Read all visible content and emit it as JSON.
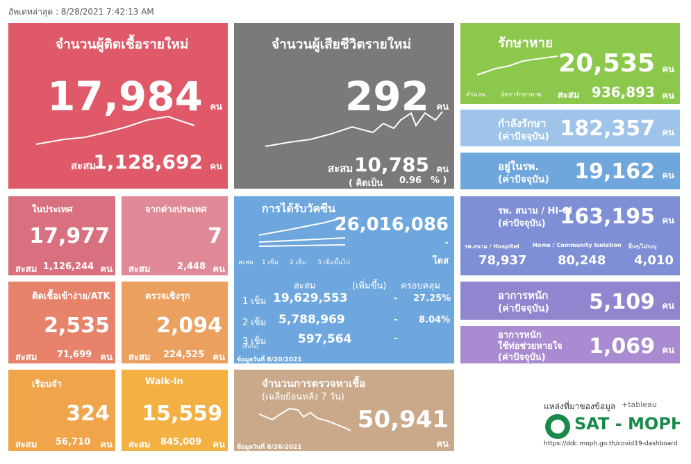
{
  "header": {
    "updated": "อัพเดทล่าสุด : 8/28/2021 7:42:13 AM"
  },
  "new_cases": {
    "title": "จำนวนผู้ติดเชื้อรายใหม่",
    "value": "17,984",
    "unit": "คน",
    "cum_label": "สะสม",
    "cum": "1,128,692",
    "cum_unit": "คน"
  },
  "deaths": {
    "title": "จำนวนผู้เสียชีวิตรายใหม่",
    "value": "292",
    "unit": "คน",
    "cum_label": "สะสม",
    "cum": "10,785",
    "cum_unit": "คน",
    "rate_open": "( คิดเป็น",
    "rate": "0.96",
    "rate_close": "% )"
  },
  "recovered": {
    "title": "รักษาหาย",
    "value": "20,535",
    "unit": "คน",
    "legend": [
      "จำนวน",
      "อัตรารักษาหาย"
    ],
    "cum_label": "สะสม",
    "cum": "936,893",
    "cum_unit": "คน"
  },
  "treating": {
    "title": "กำลังรักษา",
    "sub": "(ค่าปัจจุบัน)",
    "value": "182,357",
    "unit": "คน"
  },
  "hospital": {
    "title": "อยู่ในรพ.",
    "sub": "(ค่าปัจจุบัน)",
    "value": "19,162",
    "unit": "คน"
  },
  "field": {
    "title": "รพ. สนาม / HI-CI",
    "sub": "(ค่าปัจจุบัน)",
    "value": "163,195",
    "unit": "คน",
    "parts": [
      {
        "label": "รพ.สนาม / Hospitel",
        "value": "78,937"
      },
      {
        "label": "Home / Community Isolation",
        "value": "80,248"
      },
      {
        "label": "อื่นๆ/ไม่ระบุ",
        "value": "4,010"
      }
    ]
  },
  "severe": {
    "title": "อาการหนัก",
    "sub": "(ค่าปัจจุบัน)",
    "value": "5,109",
    "unit": "คน"
  },
  "ventilator": {
    "title": "อาการหนัก",
    "title2": "ใช้ท่อช่วยหายใจ",
    "sub": "(ค่าปัจจุบัน)",
    "value": "1,069",
    "unit": "คน"
  },
  "source": {
    "label": "แหล่งที่มาของข้อมูล",
    "tableau": "+tableau",
    "org": "SAT - MOPH",
    "url": "https://ddc.moph.go.th/covid19-dashboard"
  },
  "small": [
    {
      "title": "ในประเทศ",
      "value": "17,977",
      "cum_label": "สะสม",
      "cum": "1,126,244",
      "cum_unit": "คน"
    },
    {
      "title": "จากต่างประเทศ",
      "value": "7",
      "cum_label": "สะสม",
      "cum": "2,448",
      "cum_unit": "คน"
    },
    {
      "title": "ติดเชื้อเข้าง่าย/ATK",
      "value": "2,535",
      "cum_label": "สะสม",
      "cum": "71,699",
      "cum_unit": "คน"
    },
    {
      "title": "ตรวจเชิงรุก",
      "value": "2,094",
      "cum_label": "สะสม",
      "cum": "224,525",
      "cum_unit": "คน"
    },
    {
      "title": "เรือนจำ",
      "value": "324",
      "cum_label": "สะสม",
      "cum": "56,710",
      "cum_unit": "คน"
    },
    {
      "title": "Walk-in",
      "value": "15,559",
      "cum_label": "สะสม",
      "cum": "845,009",
      "cum_unit": "คน"
    }
  ],
  "vaccine": {
    "title": "การได้รับวัคซีน",
    "total": "26,016,086",
    "change": "-",
    "unit": "โดส",
    "legend": [
      "สะสม",
      "1 เข็ม",
      "2 เข็ม",
      "3 เข็มขึ้นไป"
    ],
    "columns": [
      "สะสม",
      "(เพิ่มขึ้น)",
      "ครอบคลุม"
    ],
    "rows": [
      [
        "1 เข็ม",
        "19,629,553",
        "-",
        "27.25%"
      ],
      [
        "2 เข็ม",
        "5,788,969",
        "-",
        "8.04%"
      ],
      [
        "3 เข็ม",
        "597,564",
        "-"
      ]
    ],
    "row3_note": "(ขึ้นไป)",
    "date": "ข้อมูลวันที่ 8/20/2021"
  },
  "tests": {
    "title": "จำนวนการตรวจหาเชื้อ",
    "sub": "(เฉลี่ยย้อนหลัง 7 วัน)",
    "value": "50,941",
    "unit": "คน",
    "date": "ข้อมูลวันที่ 8/26/2021"
  }
}
